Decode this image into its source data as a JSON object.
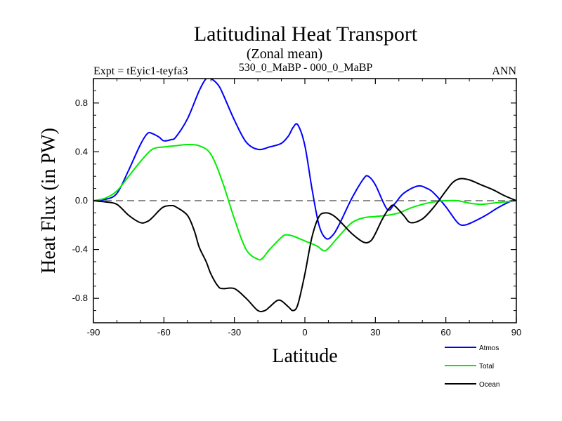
{
  "chart_data": {
    "type": "line",
    "title": "Latitudinal Heat Transport",
    "subtitle": "(Zonal mean)",
    "left_label": "Expt = tEyic1-teyfa3",
    "center_label": "530_0_MaBP - 000_0_MaBP",
    "right_label": "ANN",
    "xlabel": "Latitude",
    "ylabel": "Heat Flux (in PW)",
    "xlim": [
      -90,
      90
    ],
    "ylim": [
      -1.0,
      1.0
    ],
    "xticks": [
      -90,
      -60,
      -30,
      0,
      30,
      60,
      90
    ],
    "yticks": [
      -0.8,
      -0.4,
      0.0,
      0.4,
      0.8
    ],
    "ytick_labels": [
      "-0.8",
      "-0.4",
      "0.0",
      "0.4",
      "0.8"
    ],
    "zero_line": "dashed",
    "series": [
      {
        "name": "Atmos",
        "color": "#0000ff",
        "x": [
          -90,
          -85,
          -80,
          -75,
          -70,
          -67,
          -65,
          -62,
          -60,
          -57,
          -55,
          -50,
          -45,
          -42,
          -40,
          -37,
          -35,
          -30,
          -25,
          -20,
          -15,
          -10,
          -7,
          -5,
          -3,
          0,
          3,
          6,
          9,
          12,
          15,
          20,
          25,
          27,
          30,
          35,
          38,
          42,
          48,
          52,
          55,
          60,
          65,
          68,
          72,
          77,
          82,
          87,
          90
        ],
        "y": [
          0.0,
          0.01,
          0.06,
          0.25,
          0.46,
          0.55,
          0.55,
          0.52,
          0.49,
          0.5,
          0.52,
          0.67,
          0.9,
          1.0,
          1.0,
          0.95,
          0.88,
          0.66,
          0.48,
          0.42,
          0.44,
          0.47,
          0.53,
          0.6,
          0.62,
          0.45,
          0.1,
          -0.2,
          -0.31,
          -0.28,
          -0.18,
          0.02,
          0.18,
          0.2,
          0.13,
          -0.07,
          -0.03,
          0.06,
          0.12,
          0.1,
          0.06,
          -0.05,
          -0.18,
          -0.2,
          -0.17,
          -0.12,
          -0.06,
          -0.01,
          0.0
        ]
      },
      {
        "name": "Total",
        "color": "#00ee00",
        "x": [
          -90,
          -85,
          -80,
          -75,
          -70,
          -65,
          -60,
          -55,
          -50,
          -45,
          -40,
          -35,
          -30,
          -25,
          -20,
          -18,
          -15,
          -10,
          -8,
          -5,
          0,
          5,
          8,
          10,
          15,
          20,
          25,
          30,
          35,
          40,
          45,
          50,
          55,
          60,
          65,
          70,
          75,
          80,
          85,
          90
        ],
        "y": [
          0.0,
          0.02,
          0.08,
          0.2,
          0.32,
          0.42,
          0.44,
          0.45,
          0.46,
          0.45,
          0.38,
          0.15,
          -0.15,
          -0.4,
          -0.48,
          -0.47,
          -0.4,
          -0.3,
          -0.28,
          -0.29,
          -0.33,
          -0.37,
          -0.41,
          -0.39,
          -0.28,
          -0.18,
          -0.14,
          -0.13,
          -0.12,
          -0.1,
          -0.06,
          -0.03,
          -0.01,
          0.0,
          0.0,
          -0.02,
          -0.03,
          -0.02,
          -0.01,
          0.0
        ]
      },
      {
        "name": "Ocean",
        "color": "#000000",
        "x": [
          -90,
          -85,
          -80,
          -75,
          -70,
          -67,
          -65,
          -62,
          -60,
          -57,
          -55,
          -50,
          -47,
          -45,
          -42,
          -40,
          -37,
          -35,
          -30,
          -25,
          -20,
          -17,
          -15,
          -12,
          -10,
          -7,
          -5,
          -3,
          0,
          3,
          6,
          9,
          12,
          15,
          20,
          25,
          28,
          30,
          33,
          36,
          38,
          42,
          45,
          50,
          55,
          60,
          63,
          66,
          70,
          75,
          80,
          85,
          90
        ],
        "y": [
          0.0,
          -0.01,
          -0.03,
          -0.12,
          -0.18,
          -0.17,
          -0.14,
          -0.08,
          -0.05,
          -0.04,
          -0.05,
          -0.12,
          -0.25,
          -0.38,
          -0.5,
          -0.6,
          -0.7,
          -0.72,
          -0.72,
          -0.8,
          -0.9,
          -0.9,
          -0.87,
          -0.82,
          -0.82,
          -0.87,
          -0.9,
          -0.85,
          -0.6,
          -0.3,
          -0.13,
          -0.1,
          -0.12,
          -0.17,
          -0.27,
          -0.34,
          -0.33,
          -0.27,
          -0.15,
          -0.06,
          -0.04,
          -0.12,
          -0.18,
          -0.15,
          -0.05,
          0.08,
          0.15,
          0.18,
          0.17,
          0.13,
          0.09,
          0.04,
          0.0
        ]
      }
    ]
  }
}
